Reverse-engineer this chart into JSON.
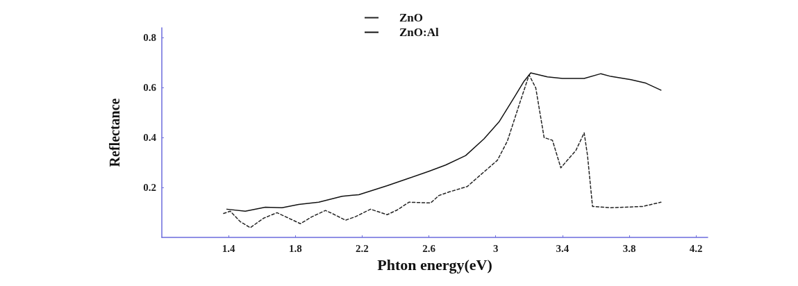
{
  "chart_data": {
    "type": "line",
    "xlabel": "Phton energy(eV)",
    "ylabel": "Reflectance",
    "xlim": [
      1,
      4.27
    ],
    "ylim": [
      0,
      0.84
    ],
    "xticks": [
      1.4,
      1.8,
      2.2,
      2.6,
      3,
      3.4,
      3.8,
      4.2
    ],
    "yticks": [
      0.2,
      0.4,
      0.6,
      0.8
    ],
    "grid": false,
    "legend": "top",
    "marker": "none",
    "series": [
      {
        "name": "ZnO",
        "color": "#222222",
        "line_style": "dashed",
        "x": [
          1.37,
          1.41,
          1.47,
          1.53,
          1.61,
          1.69,
          1.76,
          1.83,
          1.9,
          1.98,
          2.02,
          2.1,
          2.16,
          2.25,
          2.35,
          2.41,
          2.48,
          2.61,
          2.66,
          2.72,
          2.83,
          2.91,
          3.01,
          3.07,
          3.14,
          3.2,
          3.24,
          3.29,
          3.34,
          3.39,
          3.48,
          3.53,
          3.55,
          3.58,
          3.69,
          3.88,
          3.99
        ],
        "values": [
          0.096,
          0.105,
          0.063,
          0.039,
          0.077,
          0.099,
          0.077,
          0.055,
          0.083,
          0.108,
          0.096,
          0.069,
          0.083,
          0.113,
          0.091,
          0.11,
          0.141,
          0.138,
          0.168,
          0.182,
          0.204,
          0.251,
          0.309,
          0.386,
          0.53,
          0.651,
          0.599,
          0.4,
          0.389,
          0.279,
          0.348,
          0.419,
          0.328,
          0.124,
          0.119,
          0.124,
          0.141
        ]
      },
      {
        "name": "ZnO:Al",
        "color": "#111111",
        "line_style": "solid",
        "x": [
          1.39,
          1.5,
          1.62,
          1.72,
          1.82,
          1.94,
          2.08,
          2.18,
          2.35,
          2.48,
          2.6,
          2.7,
          2.82,
          2.93,
          3.02,
          3.11,
          3.17,
          3.21,
          3.31,
          3.4,
          3.53,
          3.63,
          3.69,
          3.81,
          3.9,
          3.99
        ],
        "values": [
          0.113,
          0.105,
          0.121,
          0.119,
          0.132,
          0.141,
          0.165,
          0.171,
          0.207,
          0.237,
          0.265,
          0.29,
          0.328,
          0.395,
          0.463,
          0.56,
          0.626,
          0.659,
          0.643,
          0.637,
          0.637,
          0.656,
          0.645,
          0.632,
          0.618,
          0.59
        ]
      }
    ]
  }
}
